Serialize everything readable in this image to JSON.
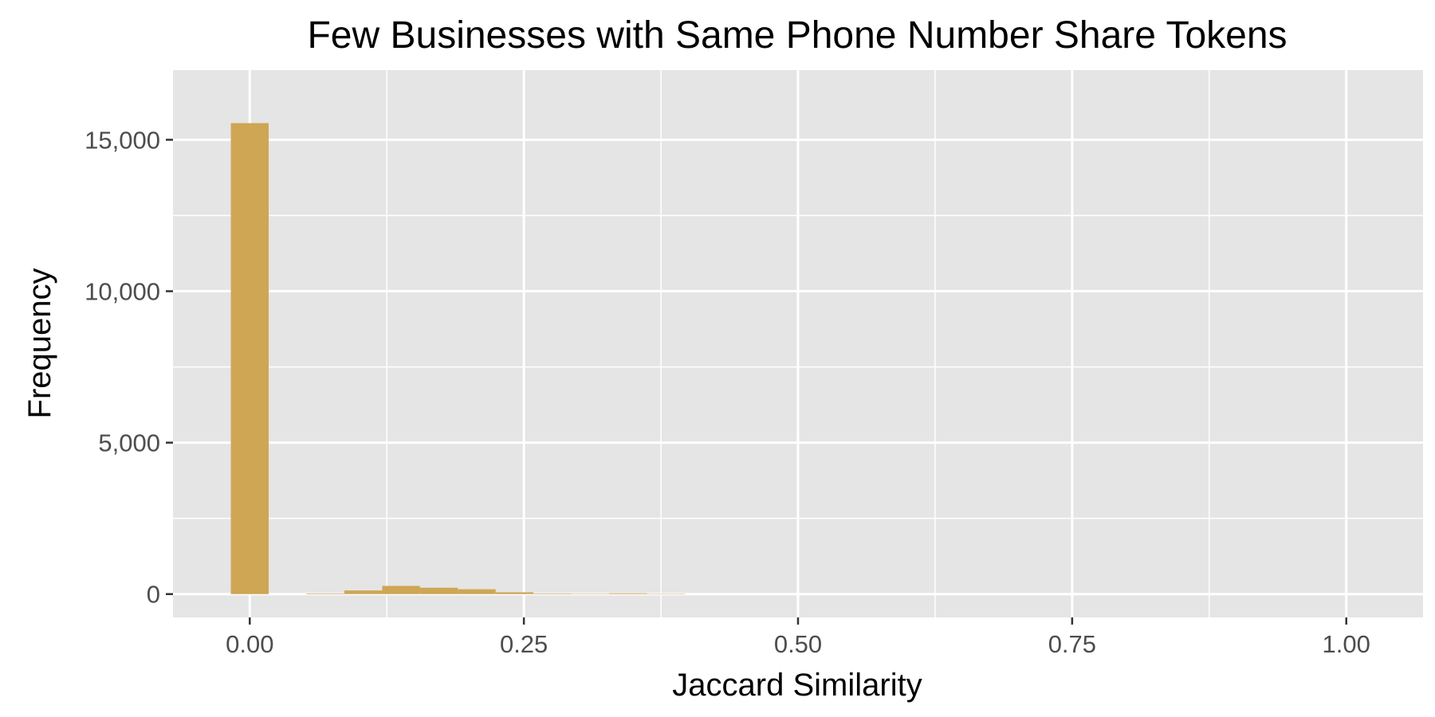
{
  "chart_data": {
    "type": "bar",
    "title": "Few Businesses with Same Phone Number Share Tokens",
    "xlabel": "Jaccard Similarity",
    "ylabel": "Frequency",
    "xlim": [
      -0.07,
      1.07
    ],
    "ylim": [
      -770,
      17300
    ],
    "x_ticks": [
      0,
      0.25,
      0.5,
      0.75,
      1
    ],
    "x_tick_labels": [
      "0.00",
      "0.25",
      "0.50",
      "0.75",
      "1.00"
    ],
    "y_ticks": [
      0,
      5000,
      10000,
      15000
    ],
    "y_tick_labels": [
      "0",
      "5,000",
      "10,000",
      "15,000"
    ],
    "grid": true,
    "bin_width": 0.0345,
    "bars": [
      {
        "x": 0.0,
        "value": 15550
      },
      {
        "x": 0.069,
        "value": 20
      },
      {
        "x": 0.1035,
        "value": 120
      },
      {
        "x": 0.138,
        "value": 270
      },
      {
        "x": 0.1725,
        "value": 210
      },
      {
        "x": 0.207,
        "value": 160
      },
      {
        "x": 0.2415,
        "value": 60
      },
      {
        "x": 0.276,
        "value": 20
      },
      {
        "x": 0.3105,
        "value": 10
      },
      {
        "x": 0.345,
        "value": 25
      },
      {
        "x": 0.3795,
        "value": 5
      }
    ],
    "colors": {
      "bar": "#CEA654",
      "panel": "#E5E5E5",
      "grid": "#FFFFFF"
    }
  }
}
